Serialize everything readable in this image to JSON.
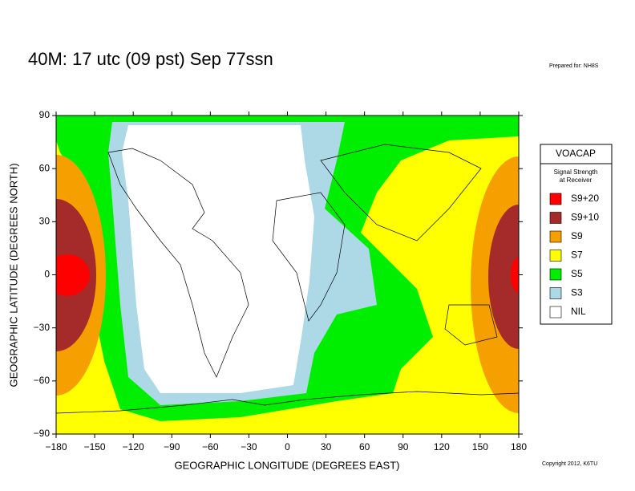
{
  "chart_data": {
    "type": "map",
    "title": "40M:  17 utc (09 pst) Sep 77ssn",
    "prepared_for": "Prepared for: NH8S",
    "copyright": "Copyright 2012, K6TU",
    "x_label": "GEOGRAPHIC LONGITUDE (DEGREES EAST)",
    "y_label": "GEOGRAPHIC LATITUDE (DEGREES NORTH)",
    "xlim": [
      -180,
      180
    ],
    "ylim": [
      -90,
      90
    ],
    "xticks": [
      {
        "value": -180,
        "label": "−180"
      },
      {
        "value": -150,
        "label": "−150"
      },
      {
        "value": -120,
        "label": "−120"
      },
      {
        "value": -90,
        "label": "−90"
      },
      {
        "value": -60,
        "label": "−60"
      },
      {
        "value": -30,
        "label": "−30"
      },
      0,
      30,
      60,
      90,
      120,
      150,
      180
    ],
    "yticks": [
      {
        "value": -90,
        "label": "−90"
      },
      {
        "value": -60,
        "label": "−60"
      },
      {
        "value": -30,
        "label": "−30"
      },
      0,
      30,
      60,
      90
    ],
    "legend": {
      "title": "VOACAP",
      "subtitle": [
        "Signal Strength",
        "at Receiver"
      ],
      "entries": [
        {
          "name": "S9+20",
          "color": "#ff0000"
        },
        {
          "name": "S9+10",
          "color": "#a52a2a"
        },
        {
          "name": "S9",
          "color": "#f5a000"
        },
        {
          "name": "S7",
          "color": "#ffff00"
        },
        {
          "name": "S5",
          "color": "#00ee00"
        },
        {
          "name": "S3",
          "color": "#add8e6"
        },
        {
          "name": "NIL",
          "color": "#ffffff"
        }
      ]
    }
  }
}
